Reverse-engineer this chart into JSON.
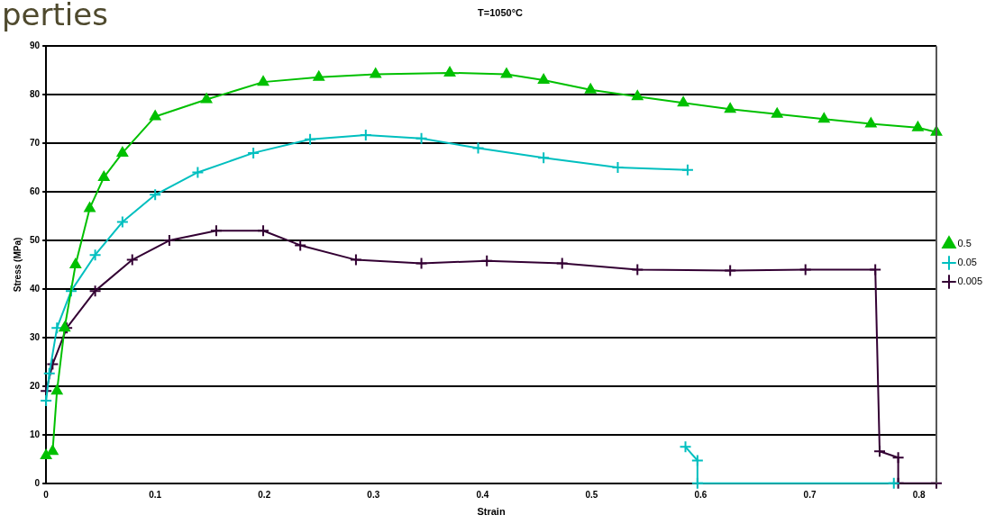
{
  "chart_data": {
    "type": "line",
    "title": "T=1050°C",
    "xlabel": "Strain",
    "ylabel": "Stress (MPa)",
    "annotations": [
      "perties"
    ],
    "xlim": [
      0,
      0.816
    ],
    "xticks": [
      0,
      0.1,
      0.2,
      0.3,
      0.4,
      0.5,
      0.6,
      0.7,
      0.8
    ],
    "ylim": [
      0,
      90
    ],
    "yticks": [
      0,
      10,
      20,
      30,
      40,
      50,
      60,
      70,
      80,
      90
    ],
    "grid": "y",
    "legend": "right",
    "line_style": "solid",
    "series": [
      {
        "name": "0.5",
        "color": "#00c000",
        "marker": "triangle",
        "x": [
          0,
          0.006,
          0.01,
          0.017,
          0.027,
          0.04,
          0.053,
          0.07,
          0.1,
          0.147,
          0.199,
          0.25,
          0.302,
          0.37,
          0.422,
          0.456,
          0.499,
          0.542,
          0.584,
          0.627,
          0.67,
          0.713,
          0.756,
          0.799,
          0.816
        ],
        "values": [
          5.7,
          6.6,
          19,
          32,
          45,
          56.6,
          63,
          68,
          75.5,
          79,
          82.6,
          83.6,
          84.2,
          84.5,
          84.2,
          83,
          81,
          79.6,
          78.3,
          77,
          76,
          75,
          74,
          73.2,
          72.3
        ]
      },
      {
        "name": "0.05",
        "color": "#00bfbf",
        "marker": "cross",
        "x": [
          0,
          0.003,
          0.01,
          0.023,
          0.045,
          0.07,
          0.1,
          0.139,
          0.19,
          0.242,
          0.293,
          0.344,
          0.396,
          0.456,
          0.524,
          0.588
        ],
        "values": [
          17,
          22.6,
          32,
          39.6,
          47,
          53.8,
          59.4,
          64,
          68,
          70.8,
          71.7,
          71,
          69,
          67,
          65,
          64.5
        ]
      },
      {
        "color": "#00bfbf",
        "marker": "cross",
        "x": [
          0.586,
          0.597,
          0.597,
          0.777
        ],
        "values": [
          7.5,
          4.7,
          0,
          0
        ]
      },
      {
        "name": "0.005",
        "color": "#330033",
        "marker": "cross",
        "x": [
          0,
          0.006,
          0.019,
          0.045,
          0.079,
          0.113,
          0.156,
          0.199,
          0.233,
          0.284,
          0.344,
          0.404,
          0.473,
          0.542,
          0.627,
          0.696,
          0.76,
          0.764,
          0.781,
          0.781,
          0.816
        ],
        "values": [
          19,
          24.5,
          32,
          39.6,
          46,
          50,
          52,
          52,
          49,
          46,
          45.3,
          45.8,
          45.3,
          44,
          43.8,
          44,
          44,
          6.6,
          5.3,
          0,
          0
        ]
      }
    ]
  }
}
